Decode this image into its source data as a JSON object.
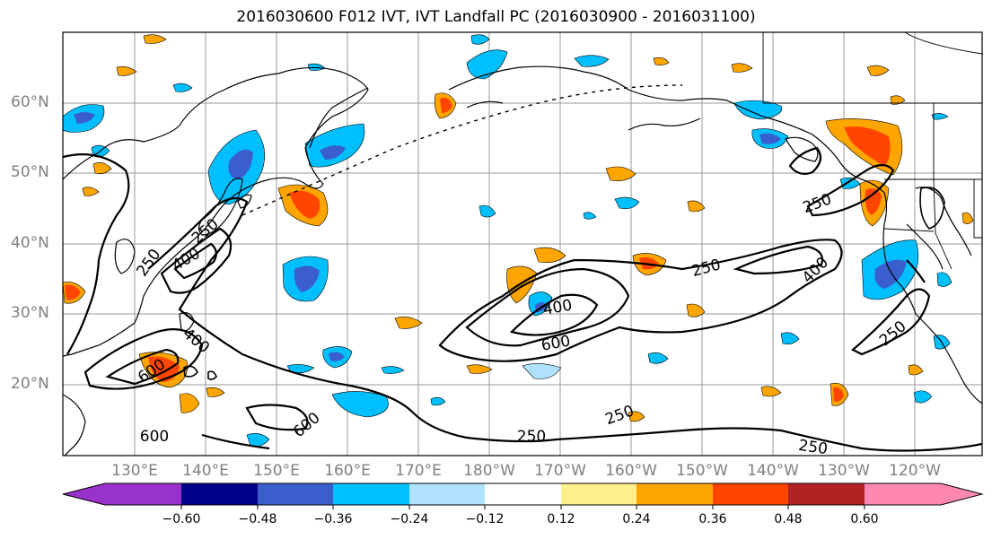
{
  "title": "2016030600 F012 IVT, IVT Landfall PC (2016030900 - 2016031100)",
  "map": {
    "lat_labels": [
      "60°N",
      "50°N",
      "40°N",
      "30°N",
      "20°N"
    ],
    "lon_labels": [
      "130°E",
      "140°E",
      "150°E",
      "160°E",
      "170°E",
      "180°W",
      "170°W",
      "160°W",
      "150°W",
      "140°W",
      "130°W",
      "120°W"
    ],
    "contour_labels": [
      "250",
      "400",
      "600",
      "250",
      "400",
      "600",
      "400",
      "600",
      "250",
      "400",
      "250",
      "250",
      "250",
      "250",
      "250",
      "600"
    ]
  },
  "colorbar": {
    "tick_labels": [
      "−0.60",
      "−0.48",
      "−0.36",
      "−0.24",
      "−0.12",
      "0.12",
      "0.24",
      "0.36",
      "0.48",
      "0.60"
    ],
    "colors": [
      "#9932cc",
      "#00008b",
      "#3a5fcd",
      "#00bfff",
      "#b0e2ff",
      "#ffffff",
      "#fff08c",
      "#ffa500",
      "#ff4500",
      "#b22222",
      "#ff88b2"
    ]
  },
  "fill_colors": {
    "neg_strong": "#3a5fcd",
    "neg_mid": "#00bfff",
    "neg_light": "#b0e2ff",
    "pos_light": "#fff08c",
    "pos_mid": "#ffa500",
    "pos_strong": "#ff4500"
  }
}
